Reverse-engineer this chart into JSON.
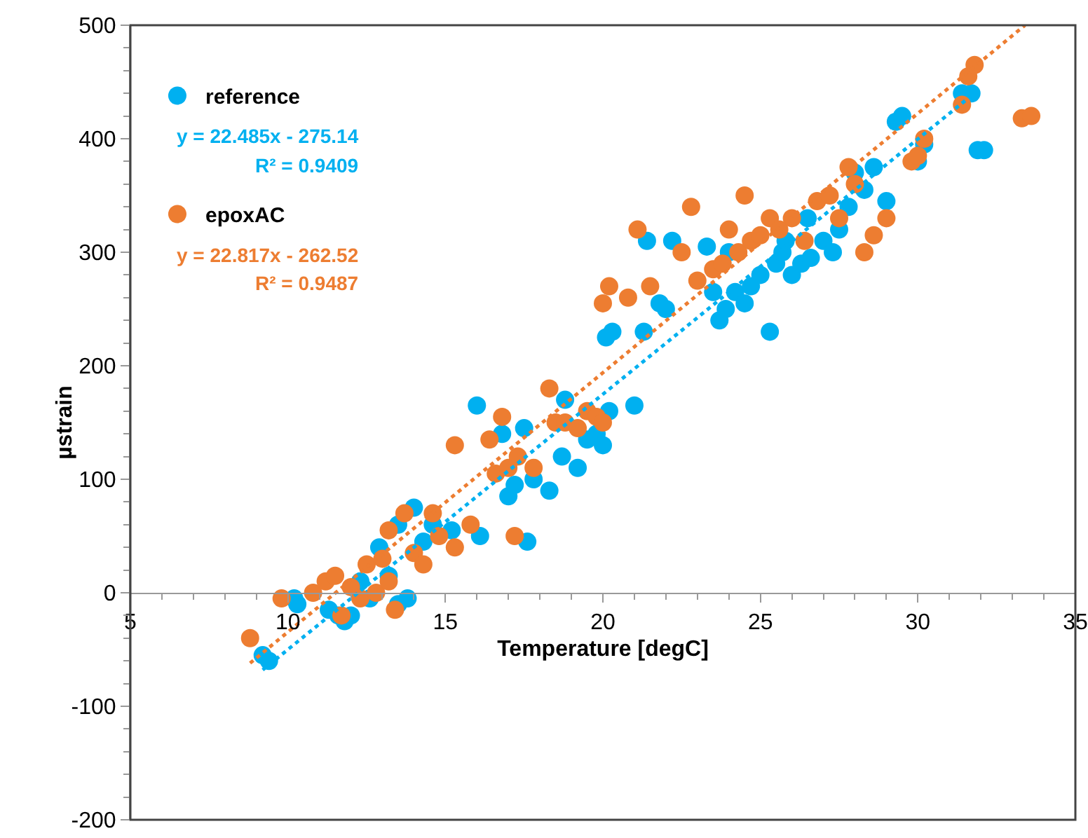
{
  "chart_data": {
    "type": "scatter",
    "xlabel": "Temperature [degC]",
    "ylabel": "µstrain",
    "xlim": [
      5,
      35
    ],
    "xticks": [
      5,
      10,
      15,
      20,
      25,
      30,
      35
    ],
    "ylim": [
      -200,
      500
    ],
    "yticks": [
      -200,
      -100,
      0,
      100,
      200,
      300,
      400,
      500
    ],
    "grid": false,
    "legend": "top left",
    "marker": "circle",
    "annotations": [
      "y = 22.485x - 275.14",
      "R² = 0.9409",
      "y = 22.817x - 262.52",
      "R² = 0.9487"
    ],
    "series": [
      {
        "name": "reference",
        "color": "#00b0f0",
        "x": [
          9.2,
          9.4,
          10.2,
          10.3,
          11.3,
          11.6,
          11.8,
          12.0,
          12.3,
          12.6,
          12.9,
          13.2,
          13.5,
          13.8,
          13.5,
          14.0,
          14.3,
          14.6,
          15.2,
          16.0,
          16.1,
          16.8,
          17.0,
          17.2,
          17.5,
          17.6,
          17.8,
          18.3,
          18.7,
          18.8,
          19.2,
          19.5,
          19.8,
          20.0,
          20.1,
          20.3,
          20.2,
          21.0,
          21.3,
          21.4,
          21.8,
          22.0,
          23.3,
          23.5,
          23.7,
          23.9,
          24.2,
          24.5,
          24.7,
          25.0,
          25.3,
          25.5,
          25.7,
          26.0,
          26.3,
          26.6,
          27.0,
          27.3,
          27.5,
          27.8,
          28.0,
          28.3,
          28.6,
          29.0,
          29.3,
          29.5,
          30.0,
          30.2,
          31.4,
          31.7,
          31.9,
          32.1,
          26.5,
          25.8,
          24.0,
          22.2
        ],
        "values": [
          -55,
          -60,
          -5,
          -10,
          -15,
          -20,
          -25,
          -20,
          10,
          -5,
          40,
          15,
          -10,
          -5,
          60,
          75,
          45,
          60,
          55,
          165,
          50,
          140,
          85,
          95,
          145,
          45,
          100,
          90,
          120,
          170,
          110,
          135,
          140,
          130,
          225,
          230,
          160,
          165,
          230,
          310,
          255,
          250,
          305,
          265,
          240,
          250,
          265,
          255,
          270,
          280,
          230,
          290,
          300,
          280,
          290,
          295,
          310,
          300,
          320,
          340,
          370,
          355,
          375,
          345,
          415,
          420,
          380,
          395,
          440,
          440,
          390,
          390,
          330,
          310,
          300,
          310
        ]
      },
      {
        "name": "epoxAC",
        "color": "#ed7d31",
        "x": [
          8.8,
          9.8,
          10.8,
          11.2,
          11.5,
          11.7,
          12.0,
          12.3,
          12.5,
          12.8,
          13.0,
          13.2,
          13.4,
          13.2,
          13.7,
          14.0,
          14.3,
          14.6,
          14.8,
          15.3,
          15.3,
          15.8,
          16.4,
          16.6,
          16.8,
          17.0,
          17.3,
          17.2,
          17.8,
          18.3,
          18.5,
          18.8,
          19.2,
          19.5,
          19.8,
          20.0,
          20.0,
          20.2,
          20.8,
          21.1,
          21.5,
          22.5,
          22.8,
          23.0,
          23.5,
          23.8,
          24.0,
          24.3,
          24.5,
          24.7,
          25.0,
          25.3,
          25.6,
          26.0,
          26.4,
          26.8,
          27.2,
          27.5,
          27.8,
          28.0,
          28.3,
          28.6,
          29.0,
          29.8,
          30.2,
          30.0,
          31.4,
          31.6,
          31.8,
          33.3,
          33.6
        ],
        "values": [
          -40,
          -5,
          0,
          10,
          15,
          -20,
          5,
          -5,
          25,
          0,
          30,
          10,
          -15,
          55,
          70,
          35,
          25,
          70,
          50,
          40,
          130,
          60,
          135,
          105,
          155,
          110,
          120,
          50,
          110,
          180,
          150,
          150,
          145,
          160,
          155,
          150,
          255,
          270,
          260,
          320,
          270,
          300,
          340,
          275,
          285,
          290,
          320,
          300,
          350,
          310,
          315,
          330,
          320,
          330,
          310,
          345,
          350,
          330,
          375,
          360,
          300,
          315,
          330,
          380,
          400,
          385,
          430,
          455,
          465,
          418,
          420
        ]
      },
      {
        "type": "line",
        "color": "#00b0f0",
        "line_style": "dotted",
        "marker": "none",
        "x": [
          9.2,
          31.7
        ],
        "values": [
          -68,
          438
        ]
      },
      {
        "type": "line",
        "color": "#ed7d31",
        "line_style": "dotted",
        "marker": "none",
        "x": [
          8.8,
          33.4
        ],
        "values": [
          -62,
          500
        ]
      }
    ]
  }
}
